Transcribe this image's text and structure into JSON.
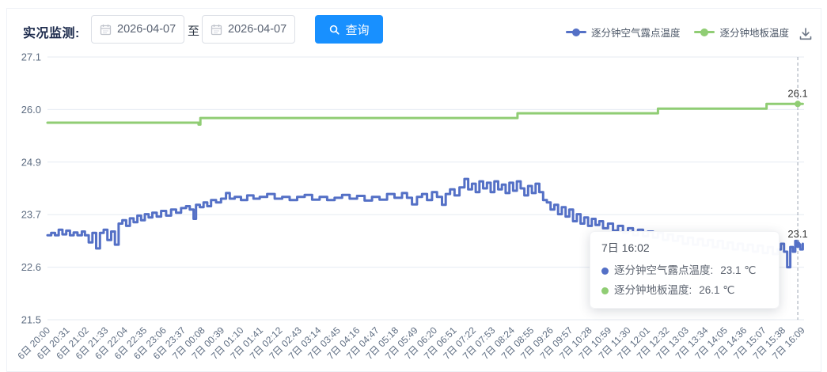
{
  "header": {
    "title": "实况监测:",
    "date_from": "2026-04-07",
    "to_label": "至",
    "date_to": "2026-04-07",
    "query_label": "查询"
  },
  "legend": {
    "items": [
      {
        "label": "逐分钟空气露点温度",
        "color": "#5470c6"
      },
      {
        "label": "逐分钟地板温度",
        "color": "#90cd74"
      }
    ]
  },
  "tooltip": {
    "title": "7日 16:02",
    "items": [
      {
        "label": "逐分钟空气露点温度:",
        "value": "23.1 ℃",
        "color": "#5470c6"
      },
      {
        "label": "逐分钟地板温度:",
        "value": "26.1 ℃",
        "color": "#90cd74"
      }
    ]
  },
  "colors": {
    "accent_blue": "#1890ff",
    "series_dewpoint": "#5470c6",
    "series_floor": "#90cd74",
    "grid": "#e6ebf2",
    "axis_text": "#5e6d82",
    "crosshair": "#9aa3b2",
    "end_label": "#333333"
  },
  "chart_data": {
    "type": "line",
    "step": true,
    "title": "",
    "xlabel": "",
    "ylabel": "",
    "legend_position": "top-right",
    "grid": true,
    "x_axis": {
      "interval_minutes": 31,
      "labels": [
        "6日 20:00",
        "6日 20:31",
        "6日 21:02",
        "6日 21:33",
        "6日 22:04",
        "6日 22:35",
        "6日 23:06",
        "6日 23:37",
        "7日 00:08",
        "7日 00:39",
        "7日 01:10",
        "7日 01:41",
        "7日 02:12",
        "7日 02:43",
        "7日 03:14",
        "7日 03:45",
        "7日 04:16",
        "7日 04:47",
        "7日 05:18",
        "7日 05:49",
        "7日 06:20",
        "7日 06:51",
        "7日 07:22",
        "7日 07:53",
        "7日 08:24",
        "7日 08:55",
        "7日 09:26",
        "7日 09:57",
        "7日 10:28",
        "7日 10:59",
        "7日 11:30",
        "7日 12:01",
        "7日 12:32",
        "7日 13:03",
        "7日 13:34",
        "7日 14:05",
        "7日 14:36",
        "7日 15:07",
        "7日 15:38",
        "7日 16:09"
      ]
    },
    "y_axis": {
      "min": 21.5,
      "max": 27.1,
      "labels": [
        "21.5",
        "22.6",
        "23.7",
        "24.9",
        "26.0",
        "27.1"
      ]
    },
    "crosshair_minute": 1202,
    "series": [
      {
        "name": "逐分钟空气露点温度",
        "color": "#5470c6",
        "value_at_cursor": 23.1,
        "end_label": "23.1",
        "points": [
          [
            0,
            23.3
          ],
          [
            6,
            23.35
          ],
          [
            12,
            23.3
          ],
          [
            18,
            23.42
          ],
          [
            24,
            23.32
          ],
          [
            30,
            23.4
          ],
          [
            36,
            23.3
          ],
          [
            42,
            23.36
          ],
          [
            48,
            23.3
          ],
          [
            55,
            23.38
          ],
          [
            60,
            23.3
          ],
          [
            66,
            23.15
          ],
          [
            72,
            23.35
          ],
          [
            78,
            23.02
          ],
          [
            84,
            23.35
          ],
          [
            90,
            23.42
          ],
          [
            96,
            23.2
          ],
          [
            102,
            23.38
          ],
          [
            108,
            23.1
          ],
          [
            114,
            23.55
          ],
          [
            120,
            23.62
          ],
          [
            126,
            23.5
          ],
          [
            132,
            23.66
          ],
          [
            138,
            23.58
          ],
          [
            144,
            23.72
          ],
          [
            150,
            23.62
          ],
          [
            156,
            23.75
          ],
          [
            162,
            23.68
          ],
          [
            168,
            23.78
          ],
          [
            175,
            23.7
          ],
          [
            182,
            23.82
          ],
          [
            190,
            23.72
          ],
          [
            198,
            23.85
          ],
          [
            206,
            23.78
          ],
          [
            214,
            23.88
          ],
          [
            222,
            23.92
          ],
          [
            228,
            23.85
          ],
          [
            234,
            23.65
          ],
          [
            238,
            23.95
          ],
          [
            244,
            23.9
          ],
          [
            250,
            24.0
          ],
          [
            256,
            23.92
          ],
          [
            262,
            24.05
          ],
          [
            270,
            24.0
          ],
          [
            278,
            24.08
          ],
          [
            286,
            24.2
          ],
          [
            292,
            24.08
          ],
          [
            300,
            24.12
          ],
          [
            310,
            24.05
          ],
          [
            320,
            24.15
          ],
          [
            330,
            24.08
          ],
          [
            340,
            24.12
          ],
          [
            352,
            24.18
          ],
          [
            364,
            24.08
          ],
          [
            376,
            24.12
          ],
          [
            388,
            24.05
          ],
          [
            400,
            24.12
          ],
          [
            412,
            24.16
          ],
          [
            424,
            24.06
          ],
          [
            436,
            24.12
          ],
          [
            448,
            24.05
          ],
          [
            460,
            24.1
          ],
          [
            472,
            24.16
          ],
          [
            484,
            24.08
          ],
          [
            496,
            24.14
          ],
          [
            508,
            24.04
          ],
          [
            520,
            24.12
          ],
          [
            532,
            24.06
          ],
          [
            544,
            24.18
          ],
          [
            556,
            24.1
          ],
          [
            568,
            24.2
          ],
          [
            576,
            24.1
          ],
          [
            584,
            23.96
          ],
          [
            592,
            24.12
          ],
          [
            600,
            24.18
          ],
          [
            608,
            24.05
          ],
          [
            616,
            24.22
          ],
          [
            624,
            24.12
          ],
          [
            632,
            23.95
          ],
          [
            638,
            24.18
          ],
          [
            645,
            24.28
          ],
          [
            652,
            24.15
          ],
          [
            660,
            24.32
          ],
          [
            668,
            24.5
          ],
          [
            674,
            24.28
          ],
          [
            680,
            24.4
          ],
          [
            686,
            24.22
          ],
          [
            692,
            24.45
          ],
          [
            698,
            24.3
          ],
          [
            704,
            24.42
          ],
          [
            710,
            24.22
          ],
          [
            716,
            24.45
          ],
          [
            722,
            24.28
          ],
          [
            728,
            24.38
          ],
          [
            734,
            24.2
          ],
          [
            740,
            24.42
          ],
          [
            746,
            24.25
          ],
          [
            752,
            24.45
          ],
          [
            758,
            24.3
          ],
          [
            764,
            24.15
          ],
          [
            770,
            24.35
          ],
          [
            776,
            24.2
          ],
          [
            782,
            24.4
          ],
          [
            788,
            24.22
          ],
          [
            794,
            24.05
          ],
          [
            800,
            24.0
          ],
          [
            806,
            23.85
          ],
          [
            812,
            23.95
          ],
          [
            818,
            23.75
          ],
          [
            824,
            23.9
          ],
          [
            830,
            23.7
          ],
          [
            836,
            23.85
          ],
          [
            842,
            23.6
          ],
          [
            848,
            23.75
          ],
          [
            854,
            23.55
          ],
          [
            860,
            23.68
          ],
          [
            866,
            23.5
          ],
          [
            872,
            23.65
          ],
          [
            878,
            23.52
          ],
          [
            884,
            23.6
          ],
          [
            890,
            23.45
          ],
          [
            898,
            23.55
          ],
          [
            906,
            23.4
          ],
          [
            914,
            23.5
          ],
          [
            922,
            23.35
          ],
          [
            930,
            23.45
          ],
          [
            938,
            23.3
          ],
          [
            946,
            23.42
          ],
          [
            954,
            23.28
          ],
          [
            962,
            23.38
          ],
          [
            970,
            23.25
          ],
          [
            978,
            23.35
          ],
          [
            986,
            23.2
          ],
          [
            994,
            23.32
          ],
          [
            1002,
            23.18
          ],
          [
            1010,
            23.28
          ],
          [
            1018,
            23.12
          ],
          [
            1026,
            23.25
          ],
          [
            1034,
            23.1
          ],
          [
            1042,
            23.22
          ],
          [
            1050,
            23.08
          ],
          [
            1058,
            23.2
          ],
          [
            1066,
            23.05
          ],
          [
            1074,
            23.18
          ],
          [
            1082,
            23.02
          ],
          [
            1090,
            23.15
          ],
          [
            1098,
            23.0
          ],
          [
            1106,
            23.12
          ],
          [
            1114,
            22.98
          ],
          [
            1122,
            23.1
          ],
          [
            1130,
            22.95
          ],
          [
            1138,
            23.08
          ],
          [
            1146,
            22.92
          ],
          [
            1154,
            23.05
          ],
          [
            1162,
            22.9
          ],
          [
            1170,
            23.0
          ],
          [
            1175,
            23.12
          ],
          [
            1180,
            22.95
          ],
          [
            1185,
            22.62
          ],
          [
            1190,
            23.05
          ],
          [
            1194,
            22.95
          ],
          [
            1198,
            23.18
          ],
          [
            1202,
            23.1
          ],
          [
            1206,
            23.0
          ],
          [
            1210,
            23.12
          ]
        ]
      },
      {
        "name": "逐分钟地板温度",
        "color": "#90cd74",
        "value_at_cursor": 26.1,
        "end_label": "26.1",
        "points": [
          [
            0,
            25.7
          ],
          [
            240,
            25.7
          ],
          [
            242,
            25.66
          ],
          [
            245,
            25.8
          ],
          [
            750,
            25.8
          ],
          [
            753,
            25.9
          ],
          [
            975,
            25.9
          ],
          [
            978,
            26.0
          ],
          [
            1148,
            26.0
          ],
          [
            1152,
            26.1
          ],
          [
            1210,
            26.1
          ]
        ]
      }
    ]
  }
}
